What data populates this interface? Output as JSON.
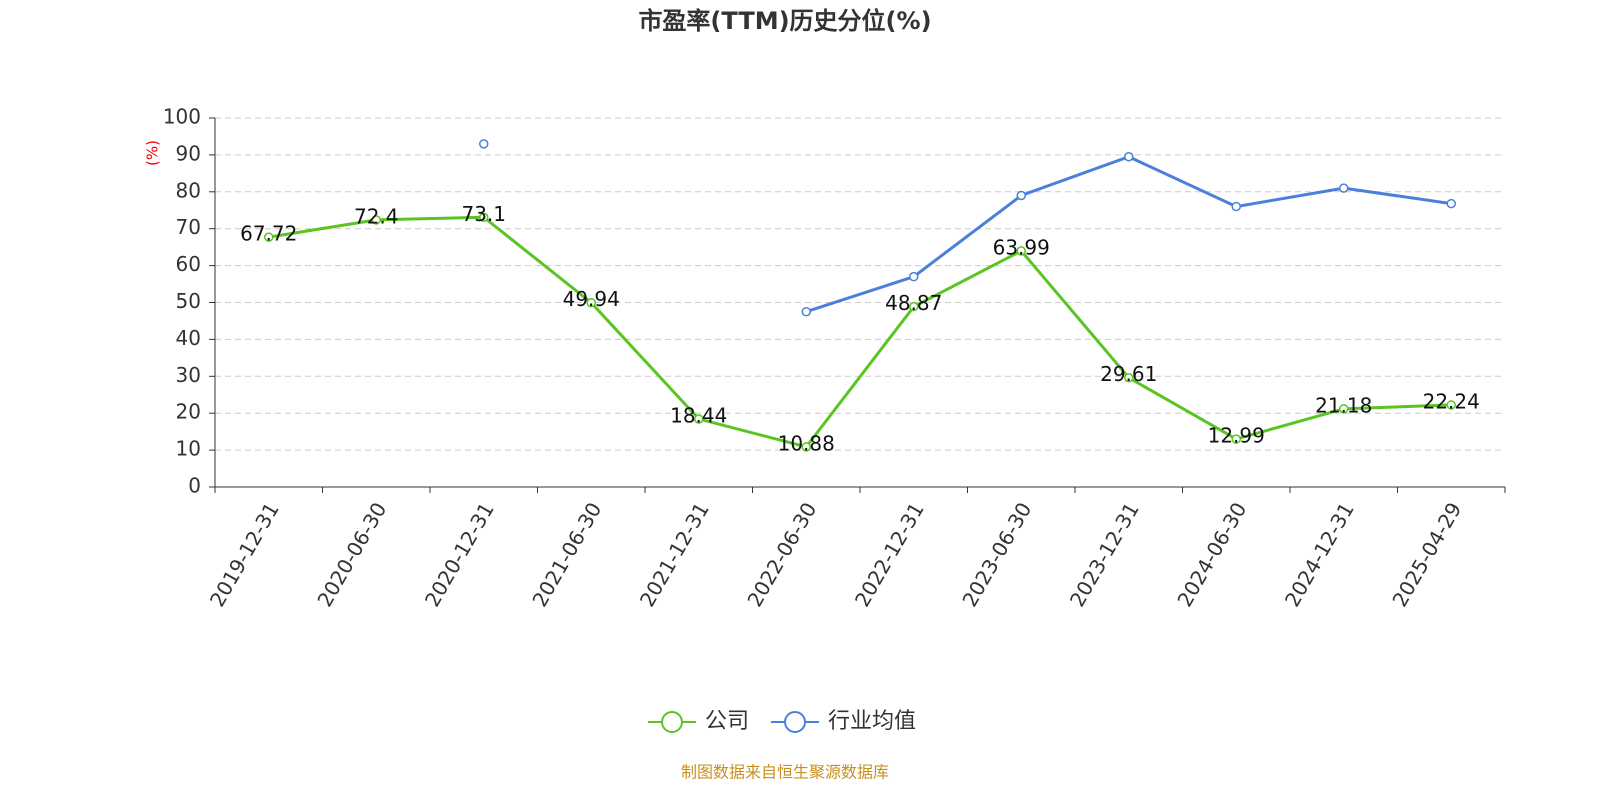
{
  "chart_data": {
    "type": "line",
    "title": "市盈率(TTM)历史分位(%)",
    "y_label": "(%)",
    "categories": [
      "2019-12-31",
      "2020-06-30",
      "2020-12-31",
      "2021-06-30",
      "2021-12-31",
      "2022-06-30",
      "2022-12-31",
      "2023-06-30",
      "2023-12-31",
      "2024-06-30",
      "2024-12-31",
      "2025-04-29"
    ],
    "series": [
      {
        "name": "公司",
        "color": "#5ac421",
        "values": [
          67.72,
          72.4,
          73.1,
          49.94,
          18.44,
          10.88,
          48.87,
          63.99,
          29.61,
          12.99,
          21.18,
          22.24
        ],
        "show_labels": true
      },
      {
        "name": "行业均值",
        "color": "#4a80dc",
        "values": [
          null,
          null,
          93,
          null,
          null,
          47.5,
          57,
          79,
          89.5,
          76,
          81,
          76.8
        ],
        "show_labels": false
      }
    ],
    "ylim": [
      0,
      100
    ],
    "yticks": [
      0,
      10,
      20,
      30,
      40,
      50,
      60,
      70,
      80,
      90,
      100
    ],
    "grid": true,
    "legend": "bottom",
    "source": "制图数据来自恒生聚源数据库"
  }
}
